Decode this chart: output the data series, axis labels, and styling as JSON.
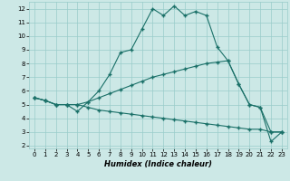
{
  "xlabel": "Humidex (Indice chaleur)",
  "bg_color": "#cce8e6",
  "grid_color": "#99ccca",
  "line_color": "#1a7068",
  "xlim_min": -0.5,
  "xlim_max": 23.5,
  "ylim_min": 1.8,
  "ylim_max": 12.5,
  "xticks": [
    0,
    1,
    2,
    3,
    4,
    5,
    6,
    7,
    8,
    9,
    10,
    11,
    12,
    13,
    14,
    15,
    16,
    17,
    18,
    19,
    20,
    21,
    22,
    23
  ],
  "yticks": [
    2,
    3,
    4,
    5,
    6,
    7,
    8,
    9,
    10,
    11,
    12
  ],
  "line1_x": [
    0,
    1,
    2,
    3,
    4,
    5,
    6,
    7,
    8,
    9,
    10,
    11,
    12,
    13,
    14,
    15,
    16,
    17,
    18,
    19,
    20,
    21,
    22,
    23
  ],
  "line1_y": [
    5.5,
    5.3,
    5.0,
    5.0,
    4.5,
    5.2,
    6.0,
    7.2,
    8.8,
    9.0,
    10.5,
    12.0,
    11.5,
    12.2,
    11.5,
    11.8,
    11.5,
    9.2,
    8.2,
    6.5,
    5.0,
    4.8,
    2.3,
    3.0
  ],
  "line2_x": [
    0,
    1,
    2,
    3,
    4,
    5,
    6,
    7,
    8,
    9,
    10,
    11,
    12,
    13,
    14,
    15,
    16,
    17,
    18,
    19,
    20,
    21,
    22,
    23
  ],
  "line2_y": [
    5.5,
    5.3,
    5.0,
    5.0,
    5.0,
    5.2,
    5.5,
    5.8,
    6.1,
    6.4,
    6.7,
    7.0,
    7.2,
    7.4,
    7.6,
    7.8,
    8.0,
    8.1,
    8.2,
    6.5,
    5.0,
    4.8,
    3.0,
    3.0
  ],
  "line3_x": [
    0,
    1,
    2,
    3,
    4,
    5,
    6,
    7,
    8,
    9,
    10,
    11,
    12,
    13,
    14,
    15,
    16,
    17,
    18,
    19,
    20,
    21,
    22,
    23
  ],
  "line3_y": [
    5.5,
    5.3,
    5.0,
    5.0,
    5.0,
    4.8,
    4.6,
    4.5,
    4.4,
    4.3,
    4.2,
    4.1,
    4.0,
    3.9,
    3.8,
    3.7,
    3.6,
    3.5,
    3.4,
    3.3,
    3.2,
    3.2,
    3.0,
    3.0
  ]
}
